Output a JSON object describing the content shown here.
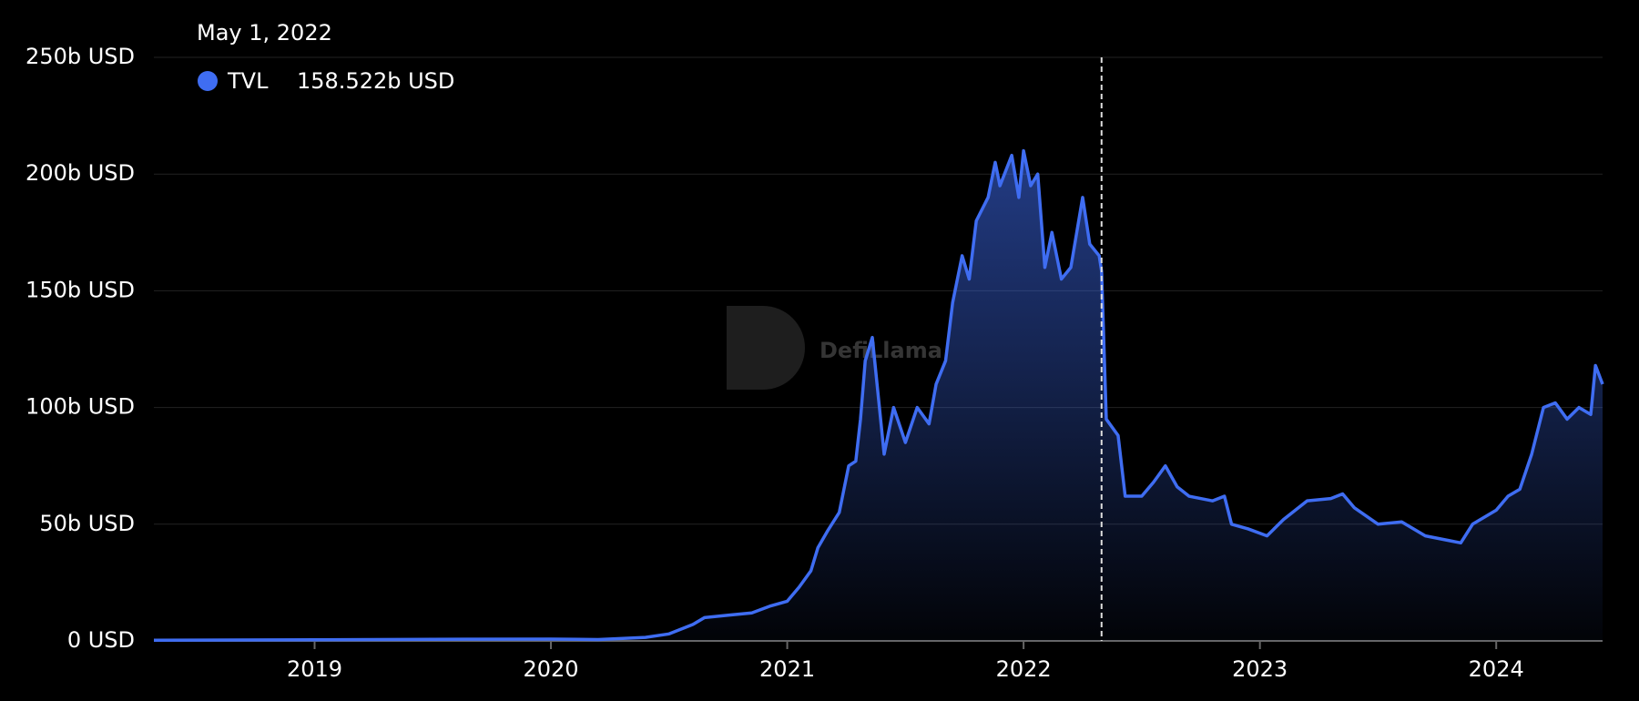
{
  "chart_data": {
    "type": "area",
    "watermark": "DefiLlama",
    "tooltip": {
      "date": "May 1, 2022",
      "x": 2022.33,
      "value_label": "158.522b USD"
    },
    "xlim": [
      2018.32,
      2024.45
    ],
    "xticks": [
      2019,
      2020,
      2021,
      2022,
      2023,
      2024
    ],
    "ylim": [
      0,
      250
    ],
    "yticks": [
      {
        "value": 0,
        "label": "0 USD"
      },
      {
        "value": 50,
        "label": "50b USD"
      },
      {
        "value": 100,
        "label": "100b USD"
      },
      {
        "value": 150,
        "label": "150b USD"
      },
      {
        "value": 200,
        "label": "200b USD"
      },
      {
        "value": 250,
        "label": "250b USD"
      }
    ],
    "grid": true,
    "series": [
      {
        "name": "TVL",
        "color": "#3f6df2",
        "x": [
          2018.32,
          2019.0,
          2019.5,
          2020.0,
          2020.2,
          2020.4,
          2020.5,
          2020.6,
          2020.65,
          2020.75,
          2020.85,
          2020.93,
          2021.0,
          2021.05,
          2021.1,
          2021.13,
          2021.17,
          2021.22,
          2021.26,
          2021.29,
          2021.31,
          2021.33,
          2021.36,
          2021.39,
          2021.41,
          2021.45,
          2021.5,
          2021.55,
          2021.6,
          2021.63,
          2021.67,
          2021.7,
          2021.74,
          2021.77,
          2021.8,
          2021.85,
          2021.88,
          2021.9,
          2021.95,
          2021.98,
          2022.0,
          2022.03,
          2022.06,
          2022.09,
          2022.12,
          2022.16,
          2022.2,
          2022.25,
          2022.28,
          2022.32,
          2022.33,
          2022.35,
          2022.4,
          2022.43,
          2022.5,
          2022.55,
          2022.6,
          2022.65,
          2022.7,
          2022.8,
          2022.85,
          2022.88,
          2022.95,
          2023.03,
          2023.1,
          2023.2,
          2023.3,
          2023.35,
          2023.4,
          2023.5,
          2023.6,
          2023.7,
          2023.8,
          2023.85,
          2023.9,
          2024.0,
          2024.05,
          2024.1,
          2024.15,
          2024.2,
          2024.25,
          2024.3,
          2024.35,
          2024.4,
          2024.42,
          2024.45
        ],
        "values": [
          0.3,
          0.5,
          0.7,
          0.8,
          0.6,
          1.5,
          3,
          7,
          10,
          11,
          12,
          15,
          17,
          23,
          30,
          40,
          47,
          55,
          75,
          77,
          95,
          120,
          130,
          100,
          80,
          100,
          85,
          100,
          93,
          110,
          120,
          145,
          165,
          155,
          180,
          190,
          205,
          195,
          208,
          190,
          210,
          195,
          200,
          160,
          175,
          155,
          160,
          190,
          170,
          165,
          158.5,
          95,
          88,
          62,
          62,
          68,
          75,
          66,
          62,
          60,
          62,
          50,
          48,
          45,
          52,
          60,
          61,
          63,
          57,
          50,
          51,
          45,
          43,
          42,
          50,
          56,
          62,
          65,
          80,
          100,
          102,
          95,
          100,
          97,
          118,
          110
        ]
      }
    ]
  }
}
